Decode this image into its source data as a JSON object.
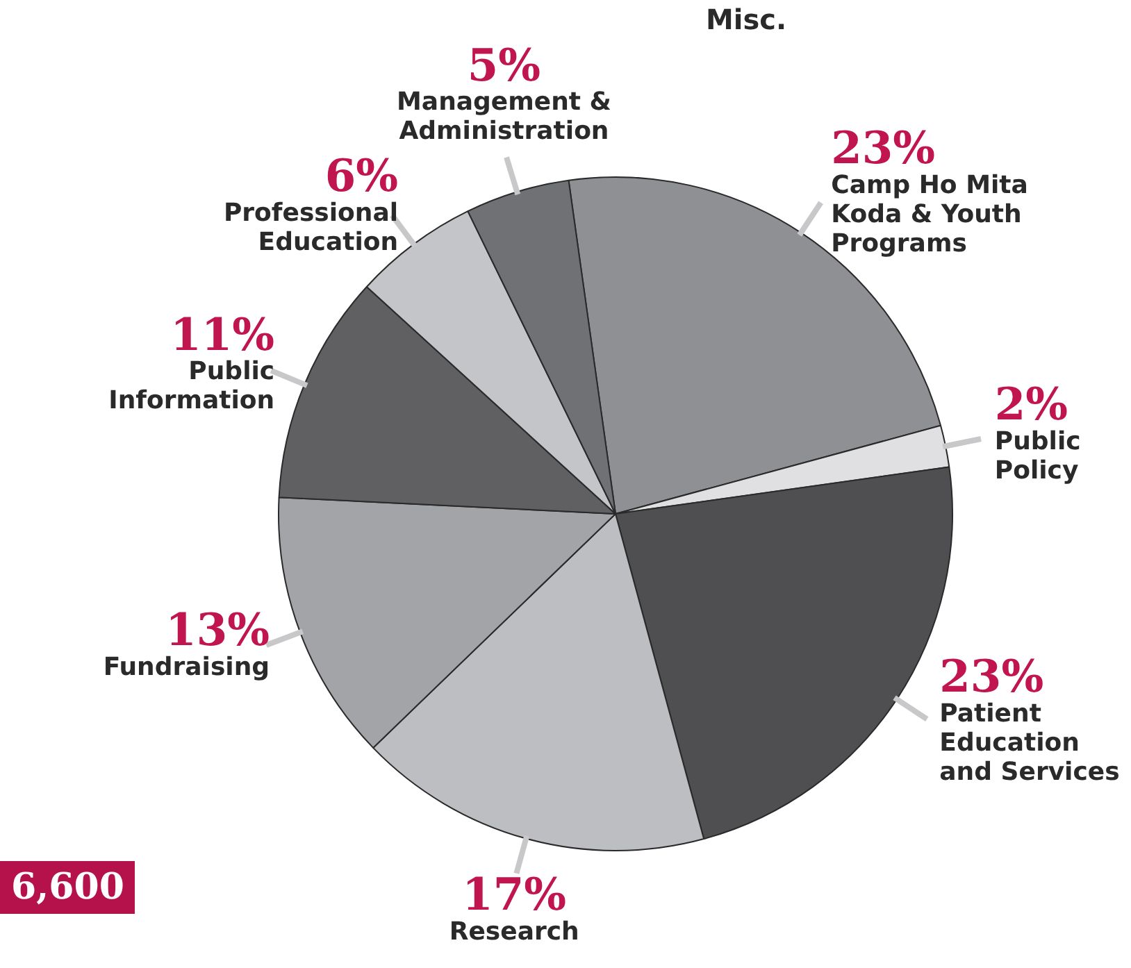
{
  "chart_data": {
    "type": "pie",
    "categories": [
      "Camp Ho Mita Koda & Youth Programs",
      "Public Policy",
      "Patient Education and Services",
      "Research",
      "Fundraising",
      "Public Information",
      "Professional Education",
      "Management & Administration"
    ],
    "values": [
      23,
      2,
      23,
      17,
      13,
      11,
      6,
      5
    ],
    "colors": [
      "#8f9094",
      "#e0e0e2",
      "#4f4f52",
      "#bdbec2",
      "#a3a4a7",
      "#606063",
      "#c4c5c8",
      "#707174"
    ],
    "value_labels": [
      "23%",
      "2%",
      "23%",
      "17%",
      "13%",
      "11%",
      "6%",
      "5%"
    ],
    "annotations": [
      "Misc.",
      "6,600"
    ],
    "legend": false
  }
}
